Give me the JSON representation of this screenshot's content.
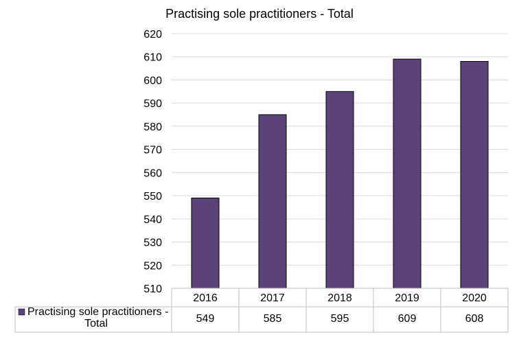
{
  "chart_data": {
    "type": "bar",
    "title": "Practising  sole  practitioners  - Total",
    "categories": [
      "2016",
      "2017",
      "2018",
      "2019",
      "2020"
    ],
    "series": [
      {
        "name": "Practising sole practitioners - Total",
        "legend_lines": [
          "Practising sole practitioners -",
          "Total"
        ],
        "values": [
          549,
          585,
          595,
          609,
          608
        ],
        "color": "#5b437a"
      }
    ],
    "ylim": [
      510,
      620
    ],
    "ystep": 10,
    "grid": true,
    "data_table": true,
    "xlabel": "",
    "ylabel": ""
  }
}
